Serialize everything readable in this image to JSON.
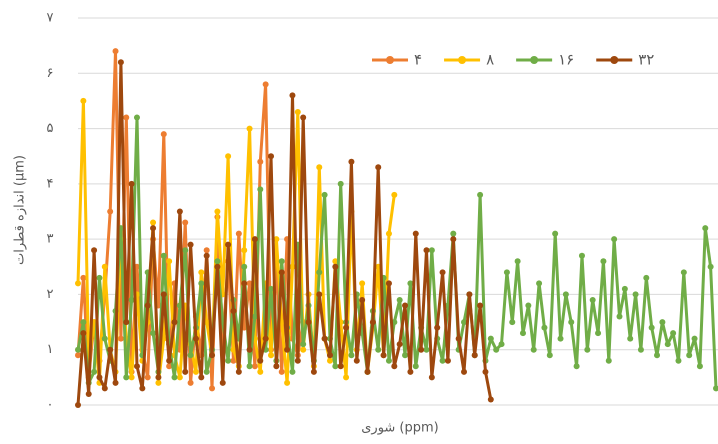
{
  "chart_data": {
    "type": "line",
    "xlabel": "شوری (ppm)",
    "ylabel": "اندازه قطرات (μm)",
    "ylim": [
      0,
      7
    ],
    "yticks": [
      {
        "value": 0,
        "label": "۰"
      },
      {
        "value": 1,
        "label": "۱"
      },
      {
        "value": 2,
        "label": "۲"
      },
      {
        "value": 3,
        "label": "۳"
      },
      {
        "value": 4,
        "label": "۴"
      },
      {
        "value": 5,
        "label": "۵"
      },
      {
        "value": 6,
        "label": "۶"
      },
      {
        "value": 7,
        "label": "۷"
      }
    ],
    "grid": true,
    "legend": "top-right",
    "series": [
      {
        "name": "۴",
        "color": "#ed7d31",
        "values": [
          0.9,
          2.3,
          0.5,
          1.5,
          0.8,
          2.0,
          3.5,
          6.4,
          1.2,
          5.2,
          0.6,
          2.5,
          1.0,
          0.5,
          3.0,
          1.8,
          4.9,
          0.7,
          2.2,
          1.0,
          3.3,
          0.4,
          1.6,
          0.9,
          2.8,
          0.3,
          3.4,
          1.1,
          2.6,
          0.8,
          3.1,
          1.4,
          2.2,
          0.7,
          4.4,
          5.8,
          1.0,
          2.5,
          0.6,
          3.0,
          1.2,
          0.9,
          1.5
        ]
      },
      {
        "name": "۸",
        "color": "#ffc000",
        "values": [
          2.2,
          5.5,
          0.8,
          1.5,
          0.4,
          2.5,
          1.0,
          0.6,
          3.0,
          1.2,
          0.5,
          2.0,
          0.8,
          1.5,
          3.3,
          0.4,
          1.2,
          2.6,
          0.9,
          0.5,
          1.8,
          1.1,
          0.6,
          2.4,
          1.5,
          0.9,
          3.5,
          2.0,
          4.5,
          1.0,
          0.7,
          2.8,
          5.0,
          1.2,
          0.6,
          2.2,
          0.9,
          3.0,
          1.5,
          0.4,
          2.5,
          5.3,
          1.0,
          2.0,
          0.7,
          4.3,
          1.2,
          0.8,
          2.6,
          1.5,
          0.5,
          3.5,
          1.0,
          2.2,
          0.6,
          1.4,
          2.5,
          0.9,
          3.1,
          3.8
        ]
      },
      {
        "name": "۱۶",
        "color": "#70ad47",
        "values": [
          1.0,
          1.5,
          0.4,
          0.6,
          2.3,
          1.2,
          0.8,
          1.7,
          3.2,
          0.5,
          1.9,
          5.2,
          0.9,
          2.4,
          1.3,
          0.6,
          2.7,
          1.1,
          0.5,
          1.8,
          2.8,
          0.9,
          1.4,
          2.2,
          0.6,
          1.0,
          2.6,
          1.5,
          0.8,
          1.9,
          1.2,
          2.5,
          0.7,
          1.6,
          3.9,
          1.0,
          2.1,
          0.8,
          2.6,
          1.4,
          0.6,
          2.9,
          1.1,
          1.8,
          0.8,
          2.4,
          3.8,
          1.2,
          0.7,
          4.0,
          1.5,
          0.9,
          2.0,
          1.3,
          0.6,
          1.7,
          1.0,
          2.3,
          0.8,
          1.5,
          1.9,
          0.9,
          2.2,
          0.7,
          1.4,
          1.0,
          2.8,
          1.2,
          0.8,
          1.8,
          3.1,
          1.0,
          1.5,
          2.0,
          0.9,
          3.8,
          0.8,
          1.2,
          1.0,
          1.1,
          2.4,
          1.5,
          2.6,
          1.3,
          1.8,
          1.0,
          2.2,
          1.4,
          0.9,
          3.1,
          1.2,
          2.0,
          1.5,
          0.7,
          2.7,
          1.0,
          1.9,
          1.3,
          2.6,
          0.8,
          3.0,
          1.6,
          2.1,
          1.2,
          2.0,
          1.0,
          2.3,
          1.4,
          0.9,
          1.5,
          1.1,
          1.3,
          0.8,
          2.4,
          0.9,
          1.2,
          0.7,
          3.2,
          2.5,
          0.3
        ]
      },
      {
        "name": "۳۲",
        "color": "#9e480e",
        "values": [
          0.0,
          1.3,
          0.2,
          2.8,
          0.5,
          0.3,
          1.0,
          0.4,
          6.2,
          1.5,
          4.0,
          0.7,
          0.3,
          1.8,
          3.2,
          0.5,
          2.0,
          0.8,
          1.5,
          3.5,
          0.6,
          2.9,
          1.2,
          0.5,
          2.7,
          0.9,
          2.5,
          0.4,
          2.9,
          1.7,
          0.6,
          2.2,
          1.0,
          3.0,
          0.8,
          1.2,
          4.5,
          0.7,
          2.4,
          1.0,
          5.6,
          0.8,
          5.2,
          1.5,
          0.6,
          2.0,
          1.2,
          0.9,
          2.5,
          0.7,
          1.4,
          4.4,
          0.8,
          1.9,
          0.6,
          1.5,
          4.3,
          0.9,
          2.2,
          0.7,
          1.1,
          1.8,
          0.6,
          3.1,
          1.0,
          2.8,
          0.5,
          1.4,
          2.4,
          0.8,
          3.0,
          1.2,
          0.6,
          2.0,
          0.9,
          1.8,
          0.6,
          0.1
        ]
      }
    ]
  }
}
